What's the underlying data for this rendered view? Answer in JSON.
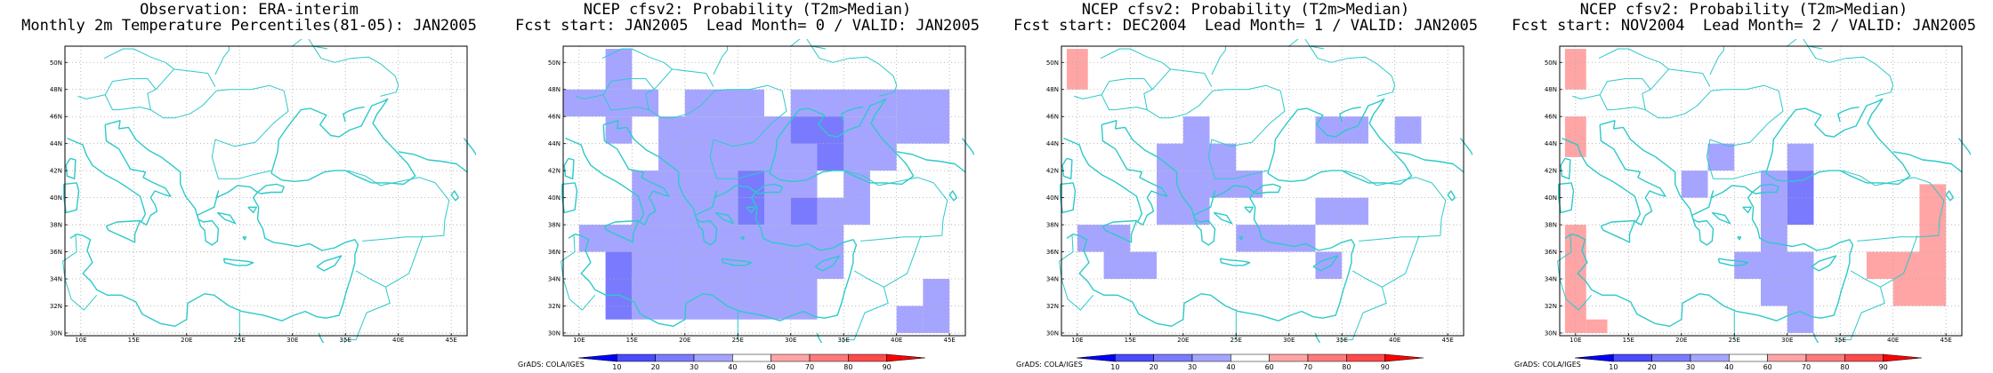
{
  "common": {
    "credit": "GrADS: COLA/IGES",
    "lon_labels": [
      "10E",
      "15E",
      "20E",
      "25E",
      "30E",
      "35E",
      "40E",
      "45E"
    ],
    "lat_labels": [
      "30N",
      "32N",
      "34N",
      "36N",
      "38N",
      "40N",
      "42N",
      "44N",
      "46N",
      "48N",
      "50N"
    ],
    "colorbar": {
      "ticks": [
        "10",
        "20",
        "30",
        "40",
        "60",
        "70",
        "80",
        "90"
      ],
      "colors": [
        "#0000ff",
        "#4a4aff",
        "#7a7aff",
        "#a5a5ff",
        "#ffffff",
        "#ffa5a5",
        "#ff7a7a",
        "#ff4a4a",
        "#ff0000"
      ]
    },
    "coast_color": "#2ec9c9"
  },
  "panels": [
    {
      "title_line1": "Observation: ERA-interim",
      "title_line2": "Monthly 2m Temperature Percentiles(81-05): JAN2005",
      "show_colorbar": false,
      "cells": []
    },
    {
      "title_line1": "NCEP cfsv2: Probability (T2m>Median)",
      "title_line2": "Fcst start: JAN2005  Lead Month= 0 / VALID: JAN2005",
      "show_colorbar": true,
      "cells": [
        {
          "lon0": 12.5,
          "lon1": 15,
          "lat0": 48,
          "lat1": 51,
          "color": "#a5a5ff"
        },
        {
          "lon0": 7.5,
          "lon1": 17.5,
          "lat0": 46,
          "lat1": 48,
          "color": "#a5a5ff"
        },
        {
          "lon0": 12.5,
          "lon1": 15,
          "lat0": 44,
          "lat1": 46,
          "color": "#a5a5ff"
        },
        {
          "lon0": 17.5,
          "lon1": 40,
          "lat0": 42,
          "lat1": 46,
          "color": "#a5a5ff"
        },
        {
          "lon0": 20,
          "lon1": 27.5,
          "lat0": 46,
          "lat1": 48,
          "color": "#a5a5ff"
        },
        {
          "lon0": 30,
          "lon1": 40,
          "lat0": 46,
          "lat1": 48,
          "color": "#a5a5ff"
        },
        {
          "lon0": 40,
          "lon1": 45,
          "lat0": 44,
          "lat1": 48,
          "color": "#a5a5ff"
        },
        {
          "lon0": 30,
          "lon1": 35,
          "lat0": 44,
          "lat1": 46,
          "color": "#7a7aff"
        },
        {
          "lon0": 32.5,
          "lon1": 35,
          "lat0": 42,
          "lat1": 44,
          "color": "#7a7aff"
        },
        {
          "lon0": 15,
          "lon1": 25,
          "lat0": 40,
          "lat1": 42,
          "color": "#a5a5ff"
        },
        {
          "lon0": 27.5,
          "lon1": 32.5,
          "lat0": 40,
          "lat1": 42,
          "color": "#a5a5ff"
        },
        {
          "lon0": 25,
          "lon1": 27.5,
          "lat0": 40,
          "lat1": 42,
          "color": "#7a7aff"
        },
        {
          "lon0": 35,
          "lon1": 37.5,
          "lat0": 40,
          "lat1": 42,
          "color": "#a5a5ff"
        },
        {
          "lon0": 15,
          "lon1": 25,
          "lat0": 38,
          "lat1": 40,
          "color": "#a5a5ff"
        },
        {
          "lon0": 25,
          "lon1": 27.5,
          "lat0": 38,
          "lat1": 40,
          "color": "#7a7aff"
        },
        {
          "lon0": 27.5,
          "lon1": 30,
          "lat0": 38,
          "lat1": 40,
          "color": "#a5a5ff"
        },
        {
          "lon0": 30,
          "lon1": 32.5,
          "lat0": 38,
          "lat1": 40,
          "color": "#7a7aff"
        },
        {
          "lon0": 32.5,
          "lon1": 37.5,
          "lat0": 38,
          "lat1": 40,
          "color": "#a5a5ff"
        },
        {
          "lon0": 10,
          "lon1": 35,
          "lat0": 36,
          "lat1": 38,
          "color": "#a5a5ff"
        },
        {
          "lon0": 15,
          "lon1": 35,
          "lat0": 34,
          "lat1": 36,
          "color": "#a5a5ff"
        },
        {
          "lon0": 12.5,
          "lon1": 15,
          "lat0": 31,
          "lat1": 36,
          "color": "#7a7aff"
        },
        {
          "lon0": 15,
          "lon1": 32.5,
          "lat0": 31,
          "lat1": 34,
          "color": "#a5a5ff"
        },
        {
          "lon0": 42.5,
          "lon1": 45,
          "lat0": 30,
          "lat1": 34,
          "color": "#a5a5ff"
        },
        {
          "lon0": 40,
          "lon1": 42.5,
          "lat0": 30,
          "lat1": 32,
          "color": "#a5a5ff"
        }
      ]
    },
    {
      "title_line1": "NCEP cfsv2: Probability (T2m>Median)",
      "title_line2": "Fcst start: DEC2004  Lead Month= 1 / VALID: JAN2005",
      "show_colorbar": true,
      "cells": [
        {
          "lon0": 9,
          "lon1": 11,
          "lat0": 48,
          "lat1": 51,
          "color": "#ffa5a5"
        },
        {
          "lon0": 20,
          "lon1": 22.5,
          "lat0": 42,
          "lat1": 46,
          "color": "#a5a5ff"
        },
        {
          "lon0": 17.5,
          "lon1": 25,
          "lat0": 42,
          "lat1": 44,
          "color": "#a5a5ff"
        },
        {
          "lon0": 17.5,
          "lon1": 22.5,
          "lat0": 38,
          "lat1": 42,
          "color": "#a5a5ff"
        },
        {
          "lon0": 22.5,
          "lon1": 27.5,
          "lat0": 40,
          "lat1": 42,
          "color": "#a5a5ff"
        },
        {
          "lon0": 32.5,
          "lon1": 37.5,
          "lat0": 44,
          "lat1": 46,
          "color": "#a5a5ff"
        },
        {
          "lon0": 40,
          "lon1": 42.5,
          "lat0": 44,
          "lat1": 46,
          "color": "#a5a5ff"
        },
        {
          "lon0": 32.5,
          "lon1": 37.5,
          "lat0": 38,
          "lat1": 40,
          "color": "#a5a5ff"
        },
        {
          "lon0": 10,
          "lon1": 15,
          "lat0": 36,
          "lat1": 38,
          "color": "#a5a5ff"
        },
        {
          "lon0": 12.5,
          "lon1": 17.5,
          "lat0": 34,
          "lat1": 36,
          "color": "#a5a5ff"
        },
        {
          "lon0": 25,
          "lon1": 32.5,
          "lat0": 36,
          "lat1": 38,
          "color": "#a5a5ff"
        },
        {
          "lon0": 32.5,
          "lon1": 35,
          "lat0": 34,
          "lat1": 36,
          "color": "#a5a5ff"
        }
      ]
    },
    {
      "title_line1": "NCEP cfsv2: Probability (T2m>Median)",
      "title_line2": "Fcst start: NOV2004  Lead Month= 2 / VALID: JAN2005",
      "show_colorbar": true,
      "cells": [
        {
          "lon0": 9,
          "lon1": 11,
          "lat0": 48,
          "lat1": 51,
          "color": "#ffa5a5"
        },
        {
          "lon0": 9,
          "lon1": 11,
          "lat0": 43,
          "lat1": 46,
          "color": "#ffa5a5"
        },
        {
          "lon0": 9,
          "lon1": 11,
          "lat0": 30,
          "lat1": 38,
          "color": "#ffa5a5"
        },
        {
          "lon0": 11,
          "lon1": 13,
          "lat0": 30,
          "lat1": 31,
          "color": "#ffa5a5"
        },
        {
          "lon0": 22.5,
          "lon1": 25,
          "lat0": 42,
          "lat1": 44,
          "color": "#a5a5ff"
        },
        {
          "lon0": 20,
          "lon1": 22.5,
          "lat0": 40,
          "lat1": 42,
          "color": "#a5a5ff"
        },
        {
          "lon0": 30,
          "lon1": 32.5,
          "lat0": 42,
          "lat1": 44,
          "color": "#a5a5ff"
        },
        {
          "lon0": 27.5,
          "lon1": 30,
          "lat0": 36,
          "lat1": 42,
          "color": "#a5a5ff"
        },
        {
          "lon0": 30,
          "lon1": 32.5,
          "lat0": 38,
          "lat1": 42,
          "color": "#7a7aff"
        },
        {
          "lon0": 25,
          "lon1": 32.5,
          "lat0": 34,
          "lat1": 36,
          "color": "#a5a5ff"
        },
        {
          "lon0": 27.5,
          "lon1": 32.5,
          "lat0": 32,
          "lat1": 34,
          "color": "#a5a5ff"
        },
        {
          "lon0": 30,
          "lon1": 32.5,
          "lat0": 30,
          "lat1": 32,
          "color": "#a5a5ff"
        },
        {
          "lon0": 37.5,
          "lon1": 45,
          "lat0": 34,
          "lat1": 36,
          "color": "#ffa5a5"
        },
        {
          "lon0": 40,
          "lon1": 45,
          "lat0": 32,
          "lat1": 34,
          "color": "#ffa5a5"
        },
        {
          "lon0": 42.5,
          "lon1": 45,
          "lat0": 36,
          "lat1": 41,
          "color": "#ffa5a5"
        }
      ]
    }
  ]
}
